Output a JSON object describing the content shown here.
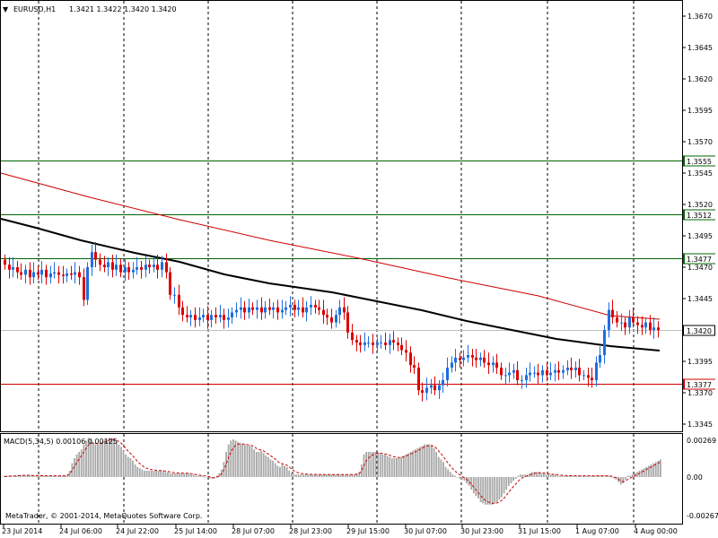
{
  "header": {
    "arrow": "▼",
    "symbol": "EURUSD,H1",
    "ohlc": "1.3421 1.3422 1.3420 1.3420"
  },
  "macd": {
    "title": "MACD(5,34,5) 0.00106 0.00125",
    "top": "0.00269",
    "zero": "0.00",
    "bottom": "-0.00267",
    "histogram": [
      2,
      2,
      2,
      2,
      2,
      2,
      3,
      3,
      3,
      3,
      3,
      3,
      2,
      2,
      2,
      2,
      2,
      2,
      2,
      2,
      2,
      2,
      2,
      2,
      2,
      2,
      2,
      4,
      10,
      22,
      30,
      36,
      40,
      44,
      52,
      58,
      62,
      60,
      55,
      52,
      52,
      54,
      57,
      59,
      60,
      62,
      62,
      60,
      56,
      52,
      48,
      42,
      36,
      32,
      30,
      26,
      20,
      16,
      14,
      12,
      10,
      10,
      10,
      10,
      10,
      10,
      10,
      10,
      10,
      8,
      8,
      6,
      6,
      6,
      6,
      6,
      6,
      6,
      6,
      6,
      4,
      4,
      2,
      2,
      2,
      2,
      0,
      0,
      -2,
      -3,
      -2,
      2,
      6,
      12,
      24,
      40,
      52,
      58,
      60,
      58,
      56,
      54,
      52,
      52,
      50,
      50,
      48,
      44,
      40,
      40,
      42,
      38,
      34,
      32,
      28,
      26,
      22,
      18,
      16,
      20,
      18,
      16,
      10,
      6,
      4,
      4,
      4,
      4,
      4,
      4,
      4,
      4,
      4,
      4,
      4,
      4,
      4,
      4,
      4,
      4,
      4,
      4,
      4,
      4,
      4,
      4,
      4,
      4,
      4,
      4,
      4,
      6,
      8,
      20,
      36,
      40,
      40,
      40,
      40,
      40,
      40,
      38,
      36,
      36,
      34,
      32,
      30,
      30,
      30,
      30,
      32,
      34,
      36,
      38,
      40,
      42,
      44,
      46,
      48,
      50,
      52,
      52,
      52,
      50,
      46,
      40,
      32,
      28,
      24,
      16,
      12,
      8,
      4,
      2,
      0,
      -2,
      -4,
      -6,
      -10,
      -14,
      -20,
      -26,
      -30,
      -34,
      -40,
      -42,
      -44,
      -44,
      -44,
      -44,
      -42,
      -40,
      -36,
      -32,
      -26,
      -20,
      -14,
      -10,
      -6,
      -3,
      2,
      4,
      4,
      4,
      4,
      6,
      8,
      8,
      8,
      8,
      6,
      6,
      4,
      4,
      4,
      4,
      4,
      2,
      2,
      2,
      2,
      2,
      2,
      2,
      2,
      2,
      2,
      2,
      2,
      2,
      2,
      2,
      2,
      2,
      2,
      2,
      2,
      2,
      2,
      2,
      0,
      -2,
      -4,
      -8,
      -12,
      -10,
      -4,
      2,
      2,
      4,
      6,
      8,
      10,
      12,
      14,
      16,
      18,
      20,
      22,
      24,
      26,
      28
    ]
  },
  "price_axis": {
    "labels": [
      "1.3670",
      "1.3645",
      "1.3620",
      "1.3595",
      "1.3570",
      "1.3545",
      "1.3520",
      "1.3495",
      "1.3470",
      "1.3445",
      "1.3395",
      "1.3370",
      "1.3345"
    ]
  },
  "levels": [
    {
      "label": "1.3555",
      "color": "#006400",
      "price": 1.3555
    },
    {
      "label": "1.3512",
      "color": "#006400",
      "price": 1.3512
    },
    {
      "label": "1.3477",
      "color": "#006400",
      "price": 1.3477
    },
    {
      "label": "1.3377",
      "color": "#cc0000",
      "price": 1.3377
    }
  ],
  "current_price": {
    "label": "1.3420",
    "price": 1.342
  },
  "time_axis": {
    "labels": [
      "23 Jul 2014",
      "24 Jul 06:00",
      "24 Jul 22:00",
      "25 Jul 14:00",
      "28 Jul 07:00",
      "28 Jul 23:00",
      "29 Jul 15:00",
      "30 Jul 07:00",
      "30 Jul 23:00",
      "31 Jul 15:00",
      "1 Aug 07:00",
      "4 Aug 00:00"
    ]
  },
  "watermark": "MetaTrader, © 2001-2014, MetaQuotes Software Corp.",
  "colors": {
    "bull": "#1e6fe0",
    "bear": "#dd0000",
    "ma_slow": "#cc0000",
    "ma_fast": "#000000",
    "grid": "#000000",
    "macd_bar": "#a8a8a8",
    "macd_signal": "#cc0000"
  },
  "chart_data": {
    "type": "candlestick",
    "symbol": "EURUSD",
    "timeframe": "H1",
    "ylim": [
      1.3335,
      1.368
    ],
    "closes": [
      1.3472,
      1.3468,
      1.347,
      1.3466,
      1.3464,
      1.3468,
      1.3462,
      1.3466,
      1.3464,
      1.3468,
      1.3462,
      1.3465,
      1.3466,
      1.3464,
      1.3463,
      1.3465,
      1.3464,
      1.3466,
      1.3462,
      1.3444,
      1.347,
      1.3482,
      1.3476,
      1.3472,
      1.347,
      1.3474,
      1.3468,
      1.3472,
      1.3466,
      1.347,
      1.3466,
      1.3468,
      1.347,
      1.3468,
      1.3472,
      1.347,
      1.3472,
      1.3468,
      1.3474,
      1.3466,
      1.3448,
      1.3448,
      1.3438,
      1.3432,
      1.343,
      1.3432,
      1.3428,
      1.343,
      1.3432,
      1.3428,
      1.3432,
      1.343,
      1.3432,
      1.3428,
      1.343,
      1.3434,
      1.3436,
      1.3438,
      1.3434,
      1.3438,
      1.3436,
      1.3438,
      1.3434,
      1.3438,
      1.3436,
      1.3438,
      1.3434,
      1.3436,
      1.3438,
      1.344,
      1.3436,
      1.3438,
      1.3434,
      1.3438,
      1.344,
      1.3438,
      1.3436,
      1.3432,
      1.343,
      1.3426,
      1.3432,
      1.3438,
      1.3434,
      1.3418,
      1.3412,
      1.341,
      1.3408,
      1.341,
      1.341,
      1.3408,
      1.341,
      1.341,
      1.3408,
      1.3412,
      1.341,
      1.3408,
      1.3404,
      1.3402,
      1.3392,
      1.339,
      1.3372,
      1.337,
      1.3374,
      1.3376,
      1.3372,
      1.3376,
      1.338,
      1.339,
      1.3394,
      1.3398,
      1.3396,
      1.3398,
      1.34,
      1.3398,
      1.3396,
      1.3398,
      1.3394,
      1.3392,
      1.3394,
      1.339,
      1.3384,
      1.3384,
      1.3386,
      1.3388,
      1.338,
      1.338,
      1.3384,
      1.3386,
      1.3386,
      1.3384,
      1.3388,
      1.3384,
      1.3386,
      1.3388,
      1.3386,
      1.3388,
      1.339,
      1.3388,
      1.339,
      1.3384,
      1.3384,
      1.3382,
      1.338,
      1.3394,
      1.34,
      1.342,
      1.3436,
      1.343,
      1.3426,
      1.3426,
      1.3422,
      1.343,
      1.3426,
      1.3424,
      1.3422,
      1.3426,
      1.342,
      1.3422,
      1.342
    ]
  }
}
